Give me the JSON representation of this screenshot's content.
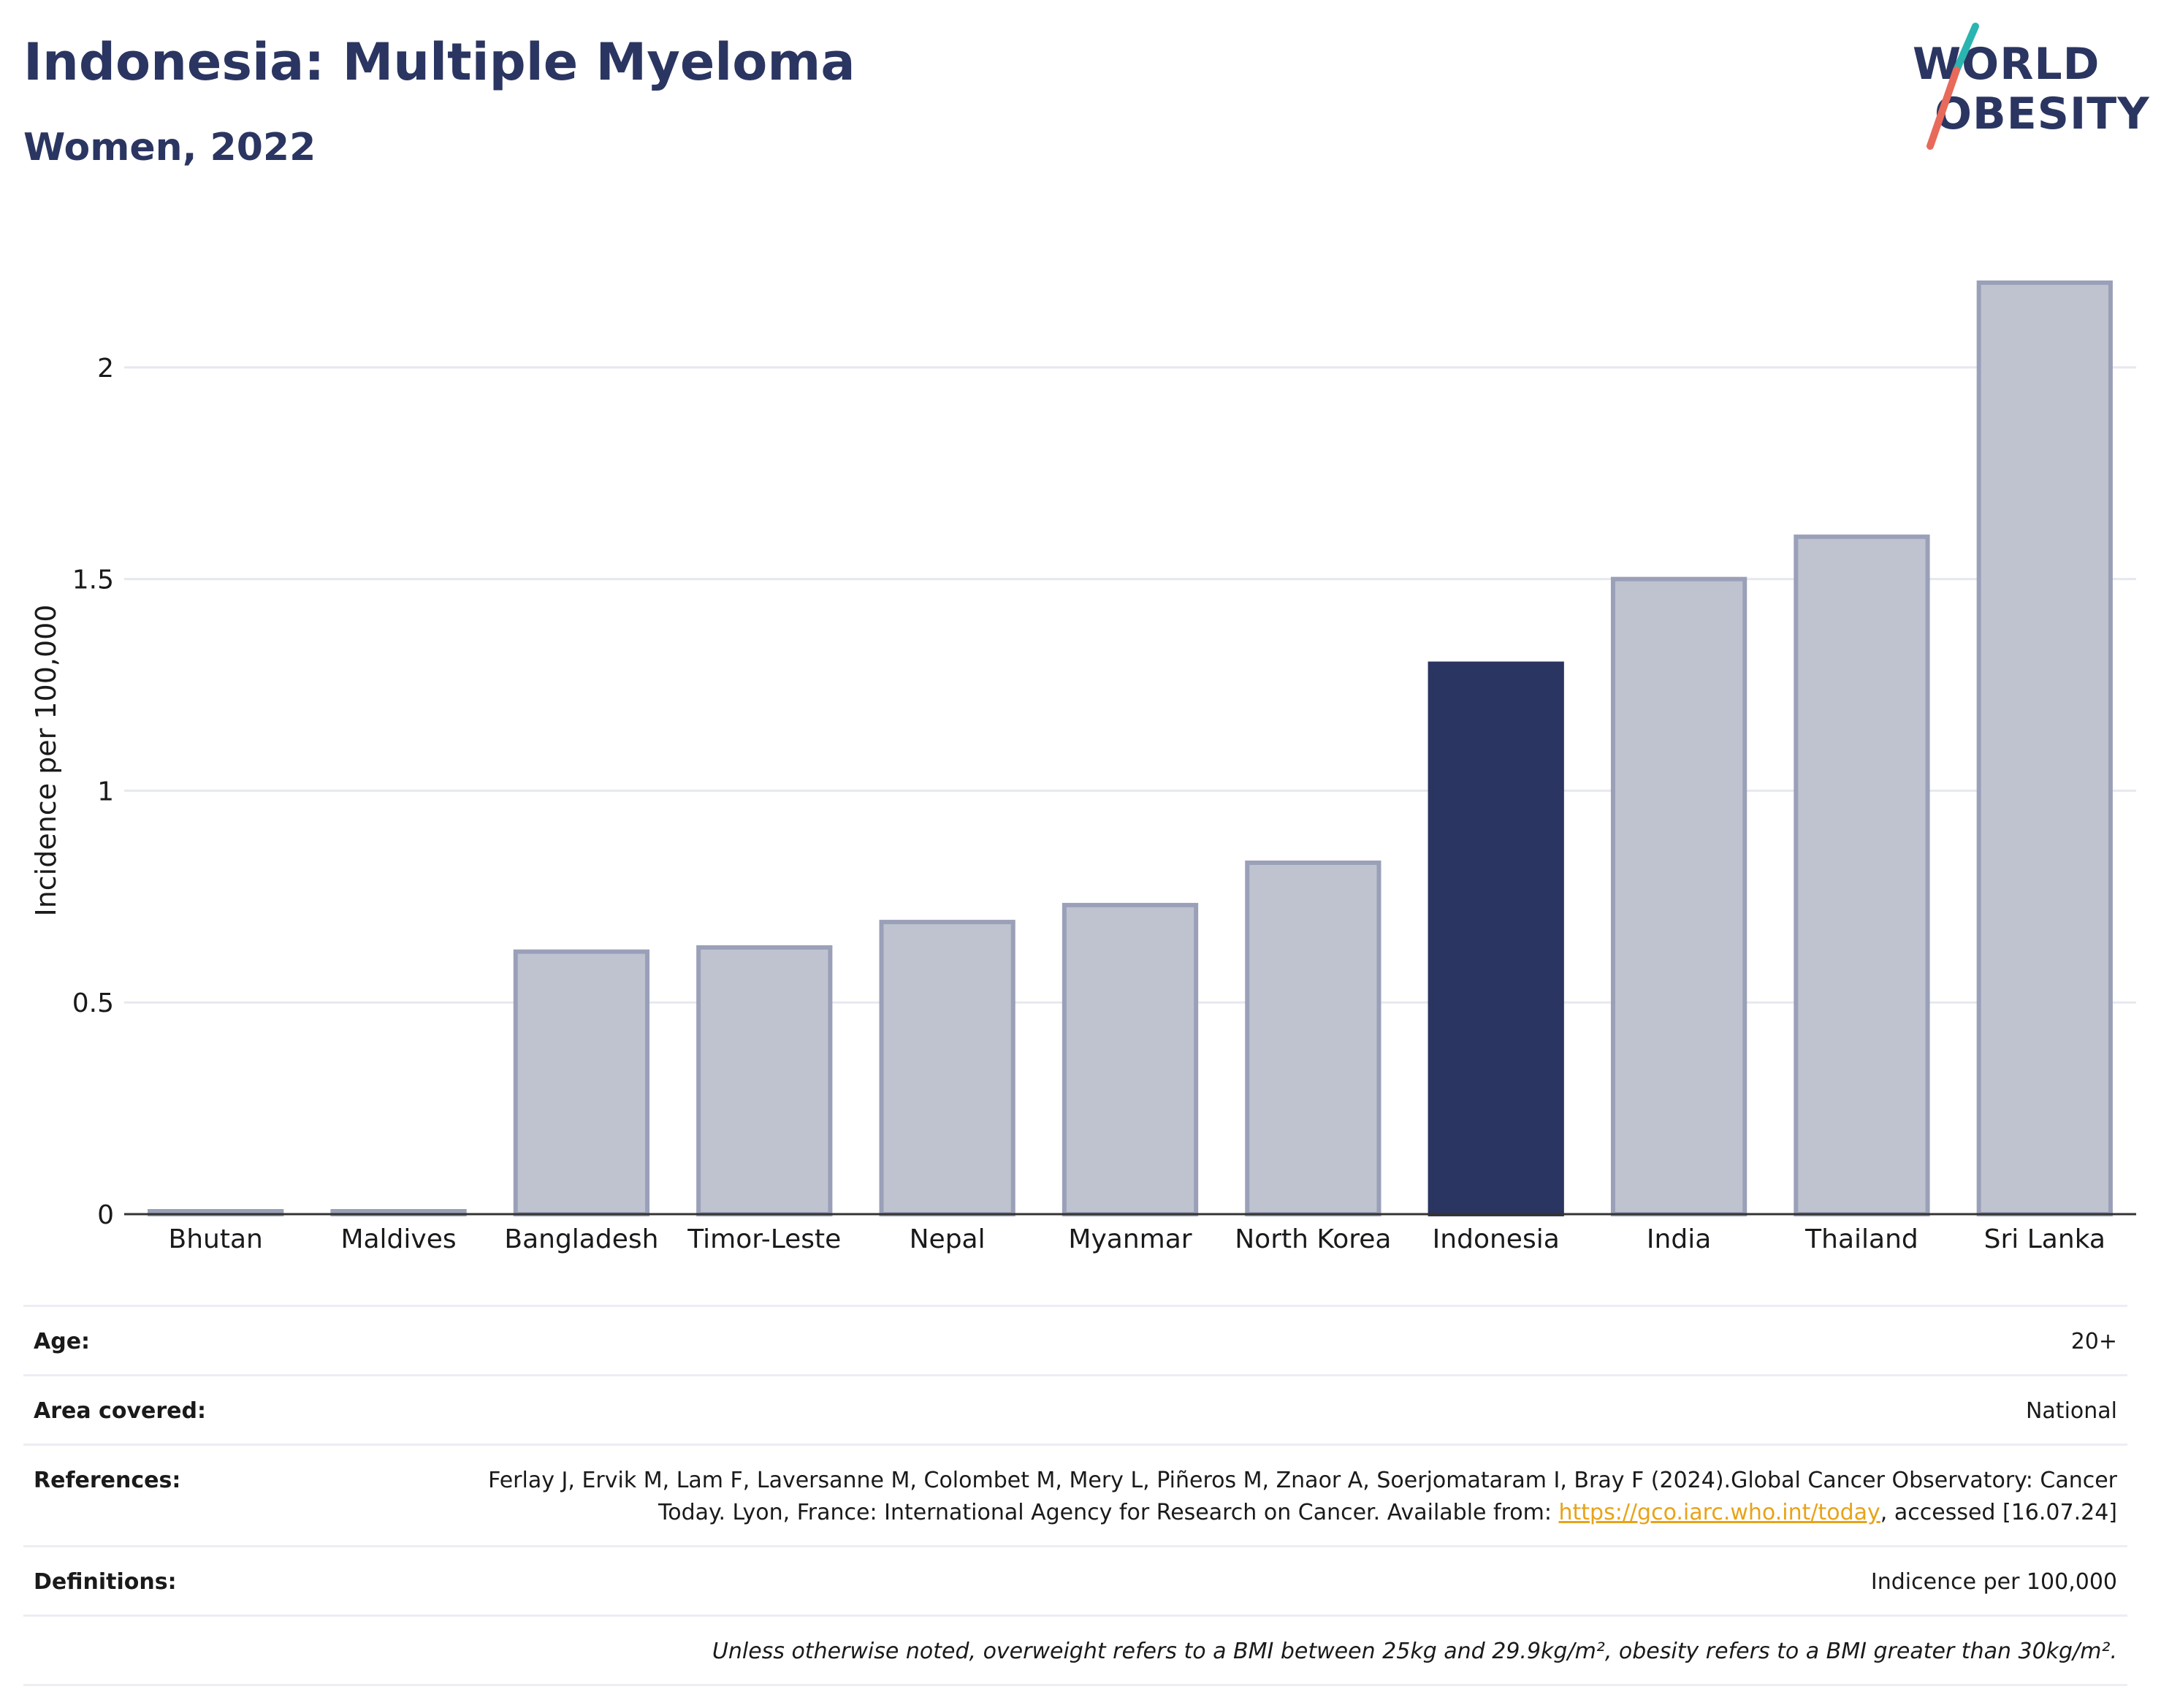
{
  "header": {
    "title": "Indonesia: Multiple Myeloma",
    "subtitle": "Women, 2022"
  },
  "logo": {
    "line1": "WORLD",
    "line2": "OBESITY"
  },
  "colors": {
    "highlight": "#2b3561",
    "bar_fill": "#bfc3d0",
    "bar_stroke": "#9aa0b8",
    "title": "#2b3561",
    "logo_teal": "#2bb5b0",
    "logo_coral": "#e86a5a",
    "link": "#e8a317"
  },
  "chart_data": {
    "type": "bar",
    "categories": [
      "Bhutan",
      "Maldives",
      "Bangladesh",
      "Timor-Leste",
      "Nepal",
      "Myanmar",
      "North Korea",
      "Indonesia",
      "India",
      "Thailand",
      "Sri Lanka"
    ],
    "values": [
      0.0,
      0.0,
      0.62,
      0.63,
      0.69,
      0.73,
      0.83,
      1.3,
      1.5,
      1.6,
      2.2
    ],
    "highlight": "Indonesia",
    "ylabel": "Incidence per 100,000",
    "yticks": [
      "0",
      "0.5",
      "1",
      "1.5",
      "2"
    ],
    "ylim": [
      0,
      2.35
    ],
    "grid": true,
    "legend": "none"
  },
  "info": {
    "age_label": "Age:",
    "age_value": "20+",
    "area_label": "Area covered:",
    "area_value": "National",
    "references_label": "References:",
    "references_text_1": "Ferlay J, Ervik M, Lam F, Laversanne M, Colombet M, Mery L, Piñeros M, Znaor A, Soerjomataram I, Bray F (2024).Global Cancer Observatory: Cancer Today. Lyon, France: International Agency for Research on Cancer. Available from: ",
    "references_link": "https://gco.iarc.who.int/today",
    "references_text_2": ", accessed [16.07.24]",
    "definitions_label": "Definitions:",
    "definitions_value": "Indicence per 100,000",
    "note": "Unless otherwise noted, overweight refers to a BMI between 25kg and 29.9kg/m², obesity refers to a BMI greater than 30kg/m²."
  }
}
